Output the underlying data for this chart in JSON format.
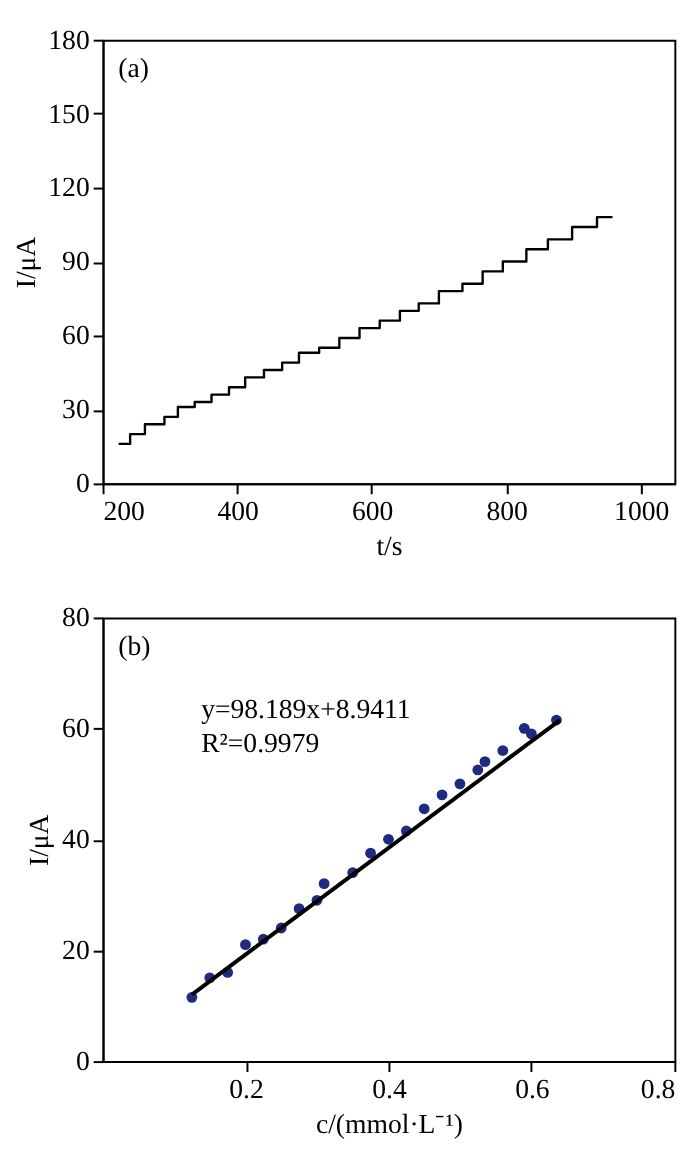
{
  "chart_data": [
    {
      "type": "step",
      "xlabel": "t/s",
      "ylabel": "I/μA",
      "xlim": [
        200,
        1050
      ],
      "ylim": [
        0,
        180
      ],
      "xticks": [
        200,
        400,
        600,
        800,
        1000
      ],
      "yticks": [
        0,
        30,
        60,
        90,
        120,
        150,
        180
      ],
      "grid": false,
      "annotations": [
        "(a)"
      ],
      "series": [
        {
          "color": "#000000",
          "x": [
            224,
            241,
            263,
            292,
            312,
            337,
            362,
            388,
            412,
            440,
            467,
            492,
            522,
            552,
            582,
            612,
            642,
            670,
            700,
            735,
            765,
            795,
            830,
            862,
            898,
            935,
            958
          ],
          "values": [
            16,
            20,
            24,
            27,
            31,
            33,
            36,
            39,
            43,
            46,
            49,
            53,
            55,
            59,
            63,
            66,
            70,
            73,
            78,
            81,
            86,
            90,
            95,
            99,
            104,
            108,
            108
          ]
        }
      ]
    },
    {
      "type": "scatter",
      "xlabel": "c/(mmol·L⁻¹)",
      "ylabel": "I/μA",
      "xlim": [
        0,
        0.8
      ],
      "ylim": [
        0,
        80
      ],
      "xticks": [
        0.2,
        0.4,
        0.6,
        0.8
      ],
      "yticks": [
        0,
        20,
        40,
        60,
        80
      ],
      "grid": false,
      "annotations": [
        "(b)",
        "y=98.189x+8.9411",
        "R²=0.9979"
      ],
      "series": [
        {
          "color": "#1f2a80",
          "marker": "circle",
          "x": [
            0.125,
            0.15,
            0.175,
            0.2,
            0.225,
            0.25,
            0.275,
            0.3,
            0.31,
            0.35,
            0.375,
            0.4,
            0.425,
            0.45,
            0.475,
            0.5,
            0.525,
            0.535,
            0.56,
            0.59,
            0.6,
            0.635
          ],
          "values": [
            11.5,
            15,
            16,
            21,
            22,
            24,
            27.5,
            29,
            32,
            34,
            37.5,
            40,
            41.5,
            45.5,
            48,
            50,
            52.5,
            54,
            56,
            60,
            59,
            61.5
          ]
        },
        {
          "type": "line",
          "color": "#000000",
          "x": [
            0.125,
            0.64
          ],
          "values": [
            12,
            61.5
          ]
        }
      ]
    }
  ]
}
